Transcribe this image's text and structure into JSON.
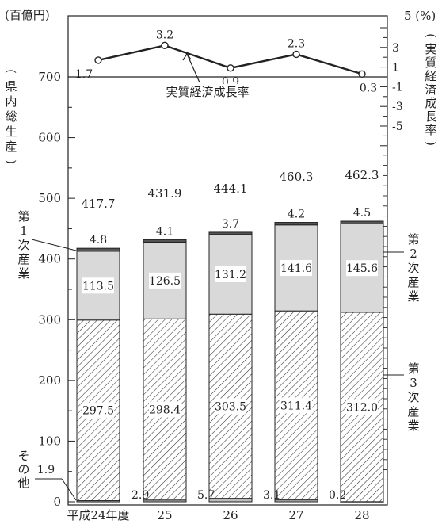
{
  "chart_data": {
    "type": "bar",
    "categories": [
      "平成24年度",
      "25",
      "26",
      "27",
      "28"
    ],
    "left_axis": {
      "unit_label": "(百億円)",
      "title_chars": [
        "(",
        "県",
        "内",
        "総",
        "生",
        "産",
        ")"
      ],
      "range": [
        0,
        700
      ],
      "tick_labels": [
        "0",
        "100",
        "200",
        "300",
        "400",
        "500",
        "600",
        "700"
      ]
    },
    "right_axis": {
      "unit_label": "5 (%)",
      "title_chars": [
        "(",
        "実",
        "質",
        "経",
        "済",
        "成",
        "長",
        "率",
        ")"
      ],
      "range": [
        -7,
        5
      ],
      "tick_labels": [
        "3",
        "1",
        "-1",
        "-3",
        "-5"
      ]
    },
    "totals": [
      "417.7",
      "431.9",
      "444.1",
      "460.3",
      "462.3"
    ],
    "series": [
      {
        "name": "その他",
        "values": [
          1.9,
          2.9,
          5.7,
          3.1,
          0.2
        ],
        "labels": [
          "1.9",
          "2.9",
          "5.7",
          "3.1",
          "0.2"
        ],
        "color": "#bbbbbb"
      },
      {
        "name": "第3次産業",
        "values": [
          297.5,
          298.4,
          303.5,
          311.4,
          312.0
        ],
        "labels": [
          "297.5",
          "298.4",
          "303.5",
          "311.4",
          "312.0"
        ],
        "color": "#ffffff",
        "pattern": "hatch"
      },
      {
        "name": "第2次産業",
        "values": [
          113.5,
          126.5,
          131.2,
          141.6,
          145.6
        ],
        "labels": [
          "113.5",
          "126.5",
          "131.2",
          "141.6",
          "145.6"
        ],
        "color": "#d9d9d9"
      },
      {
        "name": "第1次産業",
        "values": [
          4.8,
          4.1,
          3.7,
          4.2,
          4.5
        ],
        "labels": [
          "4.8",
          "4.1",
          "3.7",
          "4.2",
          "4.5"
        ],
        "color": "#555555"
      }
    ],
    "growth_rate": {
      "name": "実質経済成長率",
      "values": [
        1.7,
        3.2,
        0.9,
        2.3,
        0.3
      ],
      "labels": [
        "1.7",
        "3.2",
        "0.9",
        "2.3",
        "0.3"
      ]
    },
    "legend_labels": {
      "primary": [
        "第",
        "1",
        "次",
        "産",
        "業"
      ],
      "secondary": [
        "第",
        "2",
        "次",
        "産",
        "業"
      ],
      "tertiary": [
        "第",
        "3",
        "次",
        "産",
        "業"
      ],
      "other": [
        "そ",
        "の",
        "他"
      ]
    }
  }
}
